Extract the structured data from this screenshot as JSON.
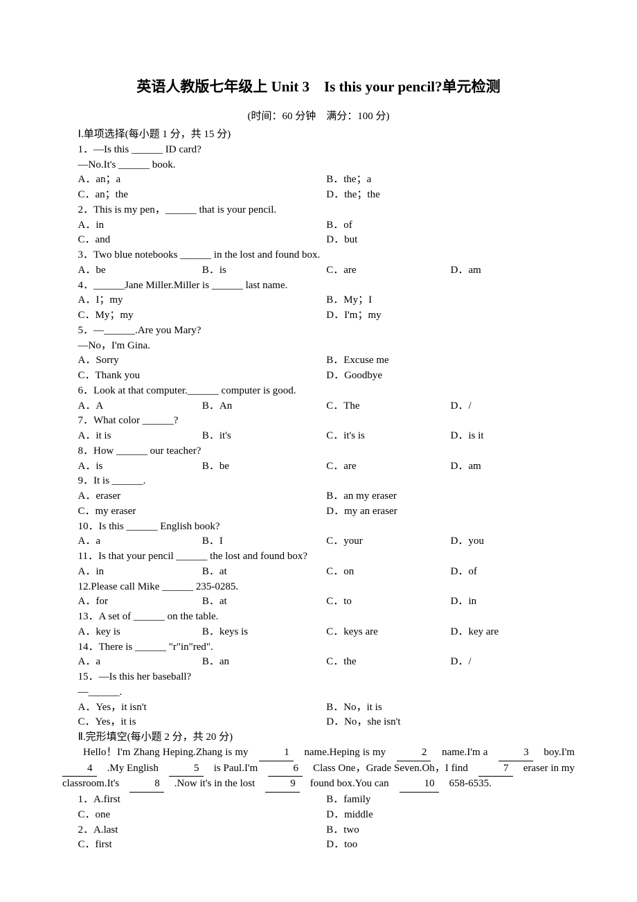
{
  "title": "英语人教版七年级上 Unit 3　Is this your pencil?单元检测",
  "subtitle": "(时间：60 分钟　满分：100 分)",
  "section1": {
    "header": "Ⅰ.单项选择(每小题 1 分，共 15 分)",
    "q1": {
      "line1": "1．—Is this ______ ID card?",
      "line2": "—No.It's ______ book.",
      "A": "A．an；a",
      "B": "B．the；a",
      "C": "C．an；the",
      "D": "D．the；the"
    },
    "q2": {
      "line1": "2．This is my pen，______ that is your pencil.",
      "A": "A．in",
      "B": "B．of",
      "C": "C．and",
      "D": "D．but"
    },
    "q3": {
      "line1": "3．Two blue notebooks ______ in the lost and found box.",
      "A": "A．be",
      "B": "B．is",
      "C": "C．are",
      "D": "D．am"
    },
    "q4": {
      "line1": "4．______Jane Miller.Miller is ______ last name.",
      "A": "A．I；my",
      "B": "B．My；I",
      "C": "C．My；my",
      "D": "D．I'm；my"
    },
    "q5": {
      "line1": "5．—______.Are you Mary?",
      "line2": "—No，I'm Gina.",
      "A": "A．Sorry",
      "B": "B．Excuse me",
      "C": "C．Thank you",
      "D": "D．Goodbye"
    },
    "q6": {
      "line1": "6．Look at that computer.______ computer is good.",
      "A": "A．A",
      "B": "B．An",
      "C": "C．The",
      "D": "D．/"
    },
    "q7": {
      "line1": "7．What color ______?",
      "A": "A．it is",
      "B": "B．it's",
      "C": "C．it's is",
      "D": "D．is it"
    },
    "q8": {
      "line1": "8．How ______ our teacher?",
      "A": "A．is",
      "B": "B．be",
      "C": "C．are",
      "D": "D．am"
    },
    "q9": {
      "line1": "9．It is ______.",
      "A": "A．eraser",
      "B": "B．an my eraser",
      "C": "C．my eraser",
      "D": "D．my an eraser"
    },
    "q10": {
      "line1": "10．Is this ______ English book?",
      "A": "A．a",
      "B": "B．I",
      "C": "C．your",
      "D": "D．you"
    },
    "q11": {
      "line1": "11．Is that your pencil ______ the lost and found box?",
      "A": "A．in",
      "B": "B．at",
      "C": "C．on",
      "D": "D．of"
    },
    "q12": {
      "line1": "12.Please call Mike ______ 235-0285.",
      "A": "A．for",
      "B": "B．at",
      "C": "C．to",
      "D": "D．in"
    },
    "q13": {
      "line1": "13．A set of ______ on the table.",
      "A": "A．key is",
      "B": "B．keys is",
      "C": "C．keys are",
      "D": "D．key are"
    },
    "q14": {
      "line1": "14．There is ______ \"r\"in\"red\".",
      "A": "A．a",
      "B": "B．an",
      "C": "C．the",
      "D": "D．/"
    },
    "q15": {
      "line1": "15．—Is this her baseball?",
      "line2": "—______.",
      "A": "A．Yes，it isn't",
      "B": "B．No，it is",
      "C": "C．Yes，it is",
      "D": "D．No，she isn't"
    }
  },
  "section2": {
    "header": "Ⅱ.完形填空(每小题 2 分，共 20 分)",
    "passage_pre": "Hello！I'm Zhang Heping.Zhang is my　",
    "passage_1": "1",
    "passage_a": "　name.Heping is my　",
    "passage_2": "2",
    "passage_b": "　name.I'm a　",
    "passage_3": "3",
    "passage_c": "　boy.I'm　",
    "passage_4": "4",
    "passage_d": "　.My English　",
    "passage_5": "5",
    "passage_e": "　is Paul.I'm　",
    "passage_6": "6",
    "passage_f": "　Class One，Grade Seven.Oh，I find　",
    "passage_7": "7",
    "passage_g": "　eraser in my classroom.It's　",
    "passage_8": "8",
    "passage_h": "　.Now it's in the lost　",
    "passage_9": "9",
    "passage_i": "　found box.You can　",
    "passage_10": "10",
    "passage_j": "　658-6535.",
    "q1": {
      "A": "1．A.first",
      "B": "B．family",
      "C": "C．one",
      "D": "D．middle"
    },
    "q2": {
      "A": "2．A.last",
      "B": "B．two",
      "C": "C．first",
      "D": "D．too"
    }
  }
}
